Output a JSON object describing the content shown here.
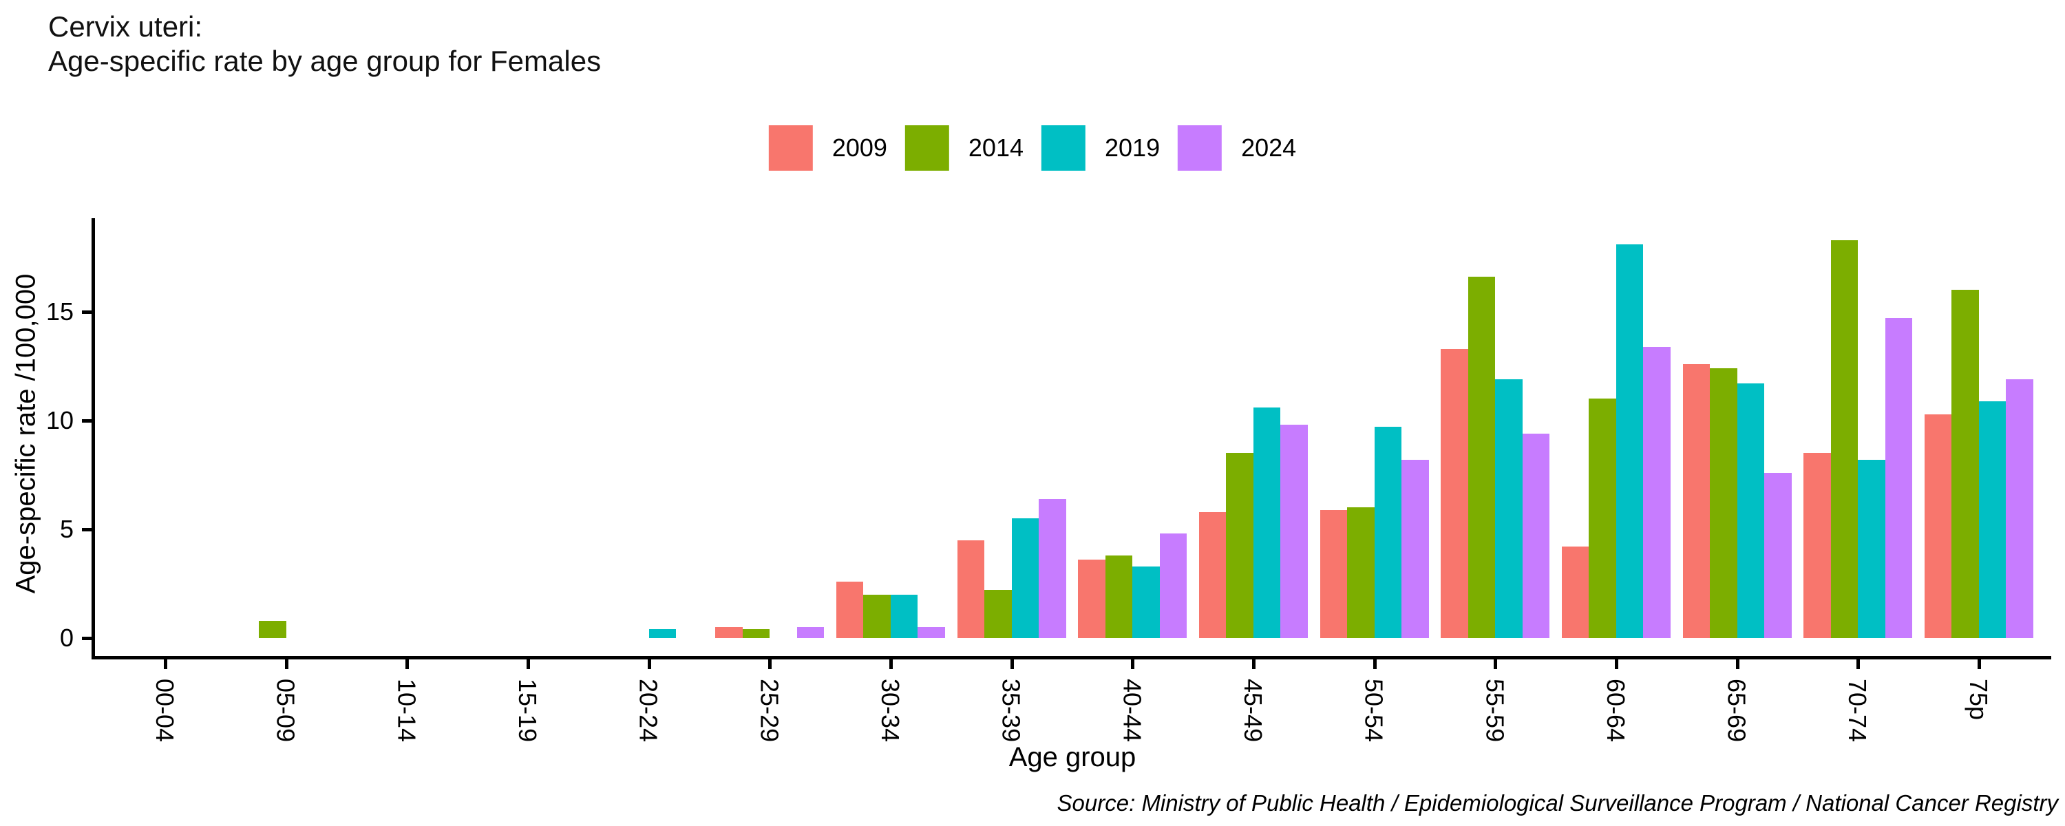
{
  "title": {
    "line1": "Cervix uteri:",
    "line2": "Age-specific rate by age group for Females"
  },
  "source": "Source: Ministry of Public Health / Epidemiological Surveillance Program / National Cancer Registry",
  "chart_data": {
    "type": "bar",
    "grouped": true,
    "title": "Cervix uteri: Age-specific rate by age group for Females",
    "xlabel": "Age group",
    "ylabel": "Age-specific rate /100,000",
    "yticks": [
      0,
      5,
      10,
      15
    ],
    "ylim": [
      0,
      19.3
    ],
    "grid": false,
    "legend_position": "top-center",
    "categories": [
      "00-04",
      "05-09",
      "10-14",
      "15-19",
      "20-24",
      "25-29",
      "30-34",
      "35-39",
      "40-44",
      "45-49",
      "50-54",
      "55-59",
      "60-64",
      "65-69",
      "70-74",
      "75p"
    ],
    "series": [
      {
        "name": "2009",
        "color": "#F8766D",
        "values": [
          0,
          0,
          0,
          0,
          0,
          0.5,
          2.6,
          4.5,
          3.6,
          5.8,
          5.9,
          13.3,
          4.2,
          12.6,
          8.5,
          10.3
        ]
      },
      {
        "name": "2014",
        "color": "#7CAE00",
        "values": [
          0,
          0.8,
          0,
          0,
          0,
          0.4,
          2.0,
          2.2,
          3.8,
          8.5,
          6.0,
          16.6,
          11.0,
          12.4,
          18.3,
          16.0
        ]
      },
      {
        "name": "2019",
        "color": "#00BFC4",
        "values": [
          0,
          0,
          0,
          0,
          0.4,
          0,
          2.0,
          5.5,
          3.3,
          10.6,
          9.7,
          11.9,
          18.1,
          11.7,
          8.2,
          10.9
        ]
      },
      {
        "name": "2024",
        "color": "#C77CFF",
        "values": [
          0,
          0,
          0,
          0,
          0,
          0.5,
          0.5,
          6.4,
          4.8,
          9.8,
          8.2,
          9.4,
          13.4,
          7.6,
          14.7,
          11.9
        ]
      }
    ]
  }
}
